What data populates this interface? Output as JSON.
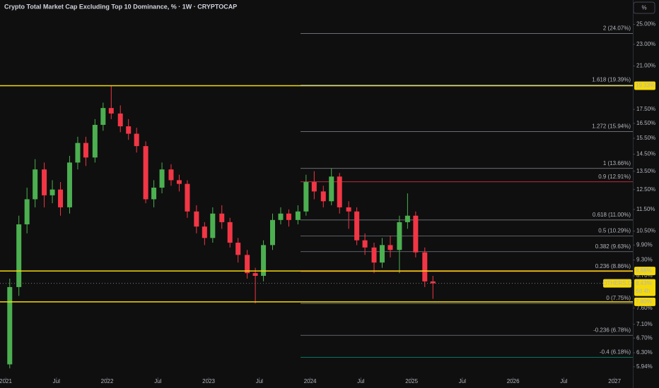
{
  "chart_data": {
    "type": "candlestick",
    "title": "Crypto Total Market Cap Excluding Top 10 Dominance, % · 1W · CRYPTOCAP",
    "scale_button": "%",
    "log_scale": true,
    "up_color": "#4caf50",
    "down_color": "#f23645",
    "x": [
      2021.04,
      2021.13,
      2021.21,
      2021.29,
      2021.38,
      2021.46,
      2021.54,
      2021.63,
      2021.71,
      2021.79,
      2021.88,
      2021.96,
      2022.04,
      2022.13,
      2022.21,
      2022.29,
      2022.38,
      2022.46,
      2022.54,
      2022.63,
      2022.71,
      2022.79,
      2022.88,
      2022.96,
      2023.04,
      2023.13,
      2023.21,
      2023.29,
      2023.38,
      2023.46,
      2023.54,
      2023.63,
      2023.71,
      2023.79,
      2023.88,
      2023.96,
      2024.04,
      2024.13,
      2024.21,
      2024.29,
      2024.38,
      2024.46,
      2024.54,
      2024.63,
      2024.71,
      2024.79,
      2024.88,
      2024.96,
      2025.04,
      2025.13,
      2025.21
    ],
    "open": [
      6.0,
      8.3,
      10.8,
      12.0,
      13.6,
      12.2,
      12.5,
      11.6,
      14.0,
      15.2,
      14.3,
      16.4,
      17.6,
      17.2,
      16.3,
      15.8,
      15.0,
      12.0,
      12.6,
      13.6,
      13.0,
      12.8,
      11.4,
      10.7,
      10.2,
      11.3,
      10.9,
      10.0,
      9.5,
      8.8,
      8.7,
      9.9,
      11.0,
      11.3,
      11.0,
      11.4,
      12.9,
      12.4,
      11.9,
      13.2,
      11.6,
      11.4,
      10.1,
      9.8,
      9.2,
      9.9,
      9.7,
      10.9,
      11.2,
      9.6,
      8.5
    ],
    "high": [
      8.6,
      11.2,
      12.6,
      14.2,
      14.0,
      13.0,
      12.9,
      14.4,
      15.6,
      15.6,
      16.8,
      18.0,
      19.33,
      17.8,
      16.8,
      16.2,
      15.3,
      13.0,
      14.0,
      13.9,
      13.3,
      13.0,
      11.7,
      10.9,
      11.6,
      11.7,
      11.1,
      10.2,
      9.7,
      9.0,
      10.1,
      11.3,
      11.6,
      11.5,
      11.7,
      13.3,
      13.5,
      12.7,
      13.66,
      13.4,
      11.9,
      11.6,
      10.4,
      10.0,
      10.2,
      10.3,
      11.2,
      12.3,
      11.4,
      9.8,
      8.7
    ],
    "low": [
      5.9,
      8.0,
      10.4,
      11.6,
      11.6,
      11.8,
      11.2,
      11.3,
      13.6,
      13.8,
      14.0,
      16.0,
      16.8,
      15.9,
      15.4,
      14.6,
      11.8,
      11.6,
      12.3,
      12.7,
      12.4,
      11.1,
      10.4,
      9.9,
      10.0,
      10.6,
      9.8,
      9.2,
      8.6,
      7.75,
      8.5,
      9.7,
      10.8,
      10.7,
      10.8,
      11.2,
      12.0,
      11.6,
      11.7,
      11.3,
      10.6,
      9.9,
      9.5,
      8.8,
      9.0,
      9.4,
      8.8,
      10.6,
      9.4,
      8.3,
      7.9
    ],
    "close": [
      8.3,
      10.8,
      12.0,
      13.6,
      12.2,
      12.5,
      11.6,
      14.0,
      15.2,
      14.3,
      16.4,
      17.6,
      17.2,
      16.3,
      15.8,
      15.0,
      12.0,
      12.6,
      13.6,
      13.0,
      12.8,
      11.4,
      10.7,
      10.2,
      11.3,
      10.9,
      10.0,
      9.5,
      8.8,
      8.7,
      9.9,
      11.0,
      11.3,
      11.0,
      11.4,
      12.9,
      12.4,
      11.9,
      13.2,
      11.6,
      11.4,
      10.1,
      9.8,
      9.2,
      9.9,
      9.7,
      10.9,
      11.2,
      9.6,
      8.5,
      8.43
    ],
    "xlim": [
      2020.944,
      2027.18
    ],
    "xticks": [
      {
        "value": 2021,
        "label": "2021"
      },
      {
        "value": 2021.5,
        "label": "Jul"
      },
      {
        "value": 2022,
        "label": "2022"
      },
      {
        "value": 2022.5,
        "label": "Jul"
      },
      {
        "value": 2023,
        "label": "2023"
      },
      {
        "value": 2023.5,
        "label": "Jul"
      },
      {
        "value": 2024,
        "label": "2024"
      },
      {
        "value": 2024.5,
        "label": "Jul"
      },
      {
        "value": 2025,
        "label": "2025"
      },
      {
        "value": 2025.5,
        "label": "Jul"
      },
      {
        "value": 2026,
        "label": "2026"
      },
      {
        "value": 2026.5,
        "label": "Jul"
      },
      {
        "value": 2027,
        "label": "2027"
      }
    ],
    "ylim": [
      5.68,
      27.7
    ],
    "yticks": [
      {
        "value": 25,
        "label": "25.00%"
      },
      {
        "value": 23,
        "label": "23.00%"
      },
      {
        "value": 21,
        "label": "21.00%"
      },
      {
        "value": 17.5,
        "label": "17.50%"
      },
      {
        "value": 16.5,
        "label": "16.50%"
      },
      {
        "value": 15.5,
        "label": "15.50%"
      },
      {
        "value": 14.5,
        "label": "14.50%"
      },
      {
        "value": 13.5,
        "label": "13.50%"
      },
      {
        "value": 12.5,
        "label": "12.50%"
      },
      {
        "value": 11.5,
        "label": "11.50%"
      },
      {
        "value": 10.5,
        "label": "10.50%"
      },
      {
        "value": 9.9,
        "label": "9.90%"
      },
      {
        "value": 9.3,
        "label": "9.30%"
      },
      {
        "value": 8.7,
        "label": "8.70%"
      },
      {
        "value": 7.6,
        "label": "7.60%"
      },
      {
        "value": 7.1,
        "label": "7.10%"
      },
      {
        "value": 6.7,
        "label": "6.70%"
      },
      {
        "value": 6.3,
        "label": "6.30%"
      },
      {
        "value": 5.94,
        "label": "5.94%"
      }
    ],
    "fib_levels": [
      {
        "label": "2 (24.07%)",
        "value": 24.07,
        "color": "#787b86"
      },
      {
        "label": "1.618 (19.39%)",
        "value": 19.39,
        "color": "#2962ff"
      },
      {
        "label": "1.272 (15.94%)",
        "value": 15.94,
        "color": "#787b86"
      },
      {
        "label": "1 (13.66%)",
        "value": 13.66,
        "color": "#787b86"
      },
      {
        "label": "0.9 (12.91%)",
        "value": 12.91,
        "color": "#f23645"
      },
      {
        "label": "0.618 (11.00%)",
        "value": 11.0,
        "color": "#787b86"
      },
      {
        "label": "0.5 (10.29%)",
        "value": 10.29,
        "color": "#787b86"
      },
      {
        "label": "0.382 (9.63%)",
        "value": 9.63,
        "color": "#787b86"
      },
      {
        "label": "0.236 (8.86%)",
        "value": 8.86,
        "color": "#f23645"
      },
      {
        "label": "0 (7.75%)",
        "value": 7.75,
        "color": "#787b86"
      },
      {
        "label": "-0.236 (6.78%)",
        "value": 6.78,
        "color": "#787b86"
      },
      {
        "label": "-0.4 (6.18%)",
        "value": 6.18,
        "color": "#089981"
      }
    ],
    "horizontal_lines": [
      {
        "value": 19.33,
        "label": "19.33%"
      },
      {
        "value": 8.88,
        "label": "8.88%"
      },
      {
        "value": 7.8,
        "label": "7.80%"
      }
    ],
    "line_color": "#f5d90a",
    "last_price": {
      "name": "OTHERS.D",
      "value": 8.43,
      "label": "8.43%",
      "countdown": "6d 4h"
    }
  }
}
